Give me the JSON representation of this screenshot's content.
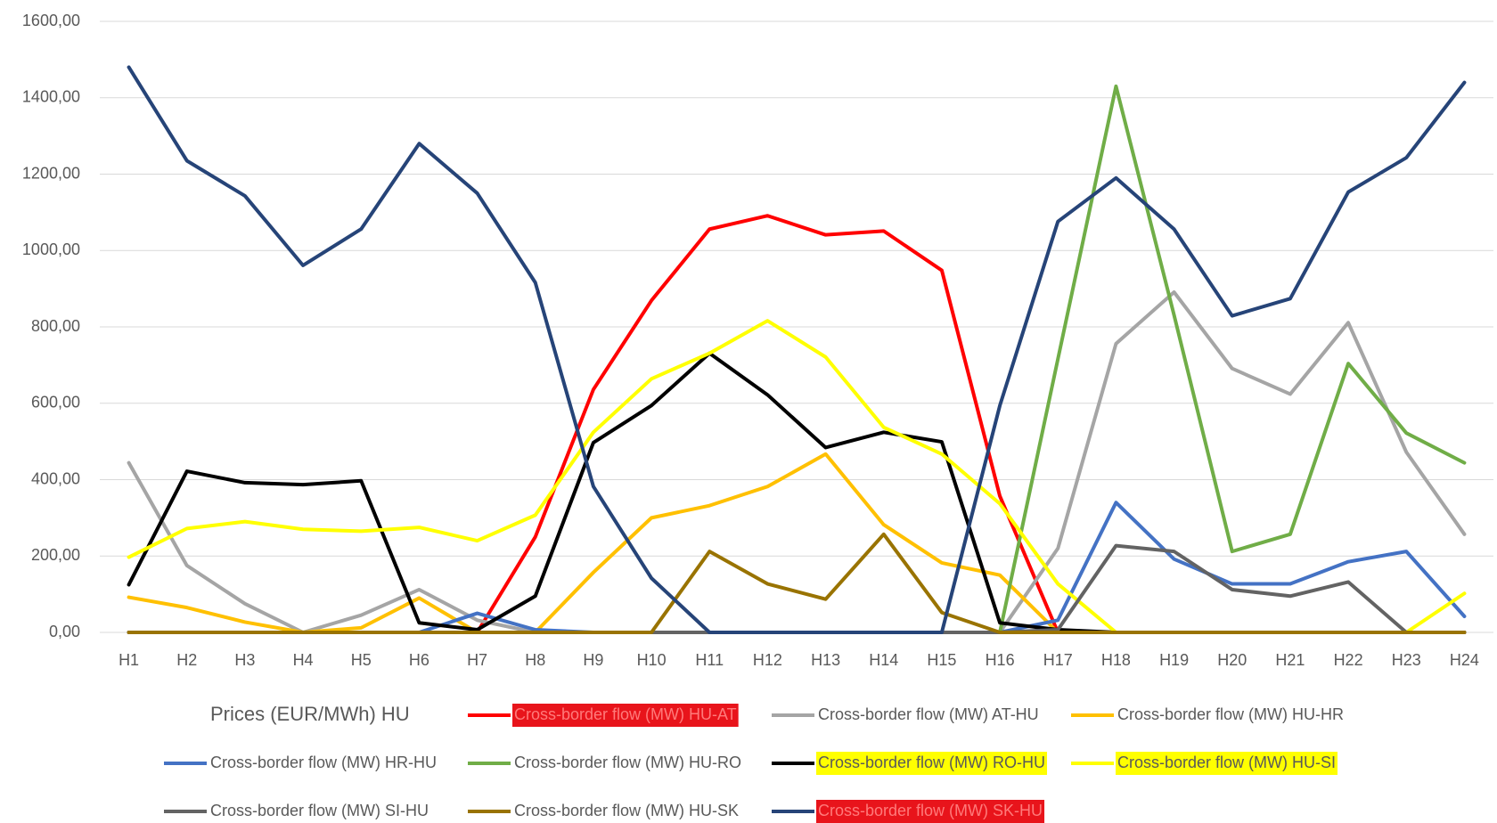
{
  "chart_data": {
    "type": "line",
    "categories": [
      "H1",
      "H2",
      "H3",
      "H4",
      "H5",
      "H6",
      "H7",
      "H8",
      "H9",
      "H10",
      "H11",
      "H12",
      "H13",
      "H14",
      "H15",
      "H16",
      "H17",
      "H18",
      "H19",
      "H20",
      "H21",
      "H22",
      "H23",
      "H24"
    ],
    "ylim": [
      0,
      1600
    ],
    "yticks": [
      {
        "value": 0,
        "label": "0,00"
      },
      {
        "value": 200,
        "label": "200,00"
      },
      {
        "value": 400,
        "label": "400,00"
      },
      {
        "value": 600,
        "label": "600,00"
      },
      {
        "value": 800,
        "label": "800,00"
      },
      {
        "value": 1000,
        "label": "1000,00"
      },
      {
        "value": 1200,
        "label": "1200,00"
      },
      {
        "value": 1400,
        "label": "1400,00"
      },
      {
        "value": 1600,
        "label": "1600,00"
      }
    ],
    "grid": true,
    "legend": "bottom",
    "legend_label": "Prices (EUR/MWh) HU",
    "series": [
      {
        "name": "Cross-border flow (MW) HU-AT",
        "color": "#ff0000",
        "label_bg": "#e8141b",
        "label_color": "#ff7a7a",
        "values": [
          0,
          0,
          0,
          0,
          0,
          0,
          0,
          250,
          636,
          869,
          1056,
          1091,
          1041,
          1051,
          948,
          357,
          0,
          0,
          0,
          0,
          0,
          0,
          0,
          0
        ]
      },
      {
        "name": "Cross-border flow (MW) AT-HU",
        "color": "#a5a5a5",
        "values": [
          444,
          175,
          75,
          0,
          45,
          112,
          32,
          0,
          0,
          0,
          0,
          0,
          0,
          0,
          0,
          0,
          220,
          756,
          891,
          691,
          624,
          811,
          472,
          257
        ]
      },
      {
        "name": "Cross-border flow (MW) HU-HR",
        "color": "#ffc000",
        "values": [
          92,
          65,
          27,
          0,
          12,
          90,
          0,
          0,
          157,
          300,
          332,
          382,
          467,
          282,
          182,
          150,
          0,
          0,
          0,
          0,
          0,
          0,
          0,
          0
        ]
      },
      {
        "name": "Cross-border flow (MW) HR-HU",
        "color": "#4472c4",
        "values": [
          0,
          0,
          0,
          0,
          0,
          0,
          50,
          7,
          0,
          0,
          0,
          0,
          0,
          0,
          0,
          0,
          32,
          340,
          192,
          127,
          127,
          185,
          212,
          42
        ]
      },
      {
        "name": "Cross-border flow (MW) HU-RO",
        "color": "#70ad47",
        "values": [
          0,
          0,
          0,
          0,
          0,
          0,
          0,
          0,
          0,
          0,
          0,
          0,
          0,
          0,
          0,
          0,
          716,
          1430,
          831,
          212,
          257,
          704,
          522,
          444
        ]
      },
      {
        "name": "Cross-border flow (MW) RO-HU",
        "color": "#000000",
        "label_bg": "#ffff00",
        "label_color": "#595959",
        "values": [
          125,
          422,
          392,
          387,
          397,
          25,
          7,
          95,
          497,
          594,
          731,
          622,
          484,
          524,
          499,
          25,
          7,
          0,
          0,
          0,
          0,
          0,
          0,
          0
        ]
      },
      {
        "name": "Cross-border flow (MW) HU-SI",
        "color": "#ffff00",
        "label_bg": "#ffff00",
        "label_color": "#595959",
        "values": [
          197,
          272,
          290,
          270,
          265,
          275,
          240,
          307,
          524,
          664,
          731,
          816,
          721,
          537,
          467,
          337,
          127,
          0,
          0,
          0,
          0,
          0,
          0,
          102
        ]
      },
      {
        "name": "Cross-border flow (MW) SI-HU",
        "color": "#636363",
        "values": [
          0,
          0,
          0,
          0,
          0,
          0,
          0,
          0,
          0,
          0,
          0,
          0,
          0,
          0,
          0,
          0,
          7,
          227,
          212,
          112,
          95,
          132,
          0,
          0
        ]
      },
      {
        "name": "Cross-border flow (MW) HU-SK",
        "color": "#997300",
        "values": [
          0,
          0,
          0,
          0,
          0,
          0,
          0,
          0,
          0,
          0,
          212,
          127,
          87,
          257,
          52,
          0,
          0,
          0,
          0,
          0,
          0,
          0,
          0,
          0
        ]
      },
      {
        "name": "Cross-border flow (MW) SK-HU",
        "color": "#264478",
        "label_bg": "#e8141b",
        "label_color": "#ff7a7a",
        "values": [
          1480,
          1235,
          1143,
          961,
          1056,
          1280,
          1150,
          916,
          382,
          142,
          0,
          0,
          0,
          0,
          0,
          594,
          1076,
          1190,
          1056,
          829,
          874,
          1153,
          1243,
          1440
        ]
      }
    ]
  }
}
